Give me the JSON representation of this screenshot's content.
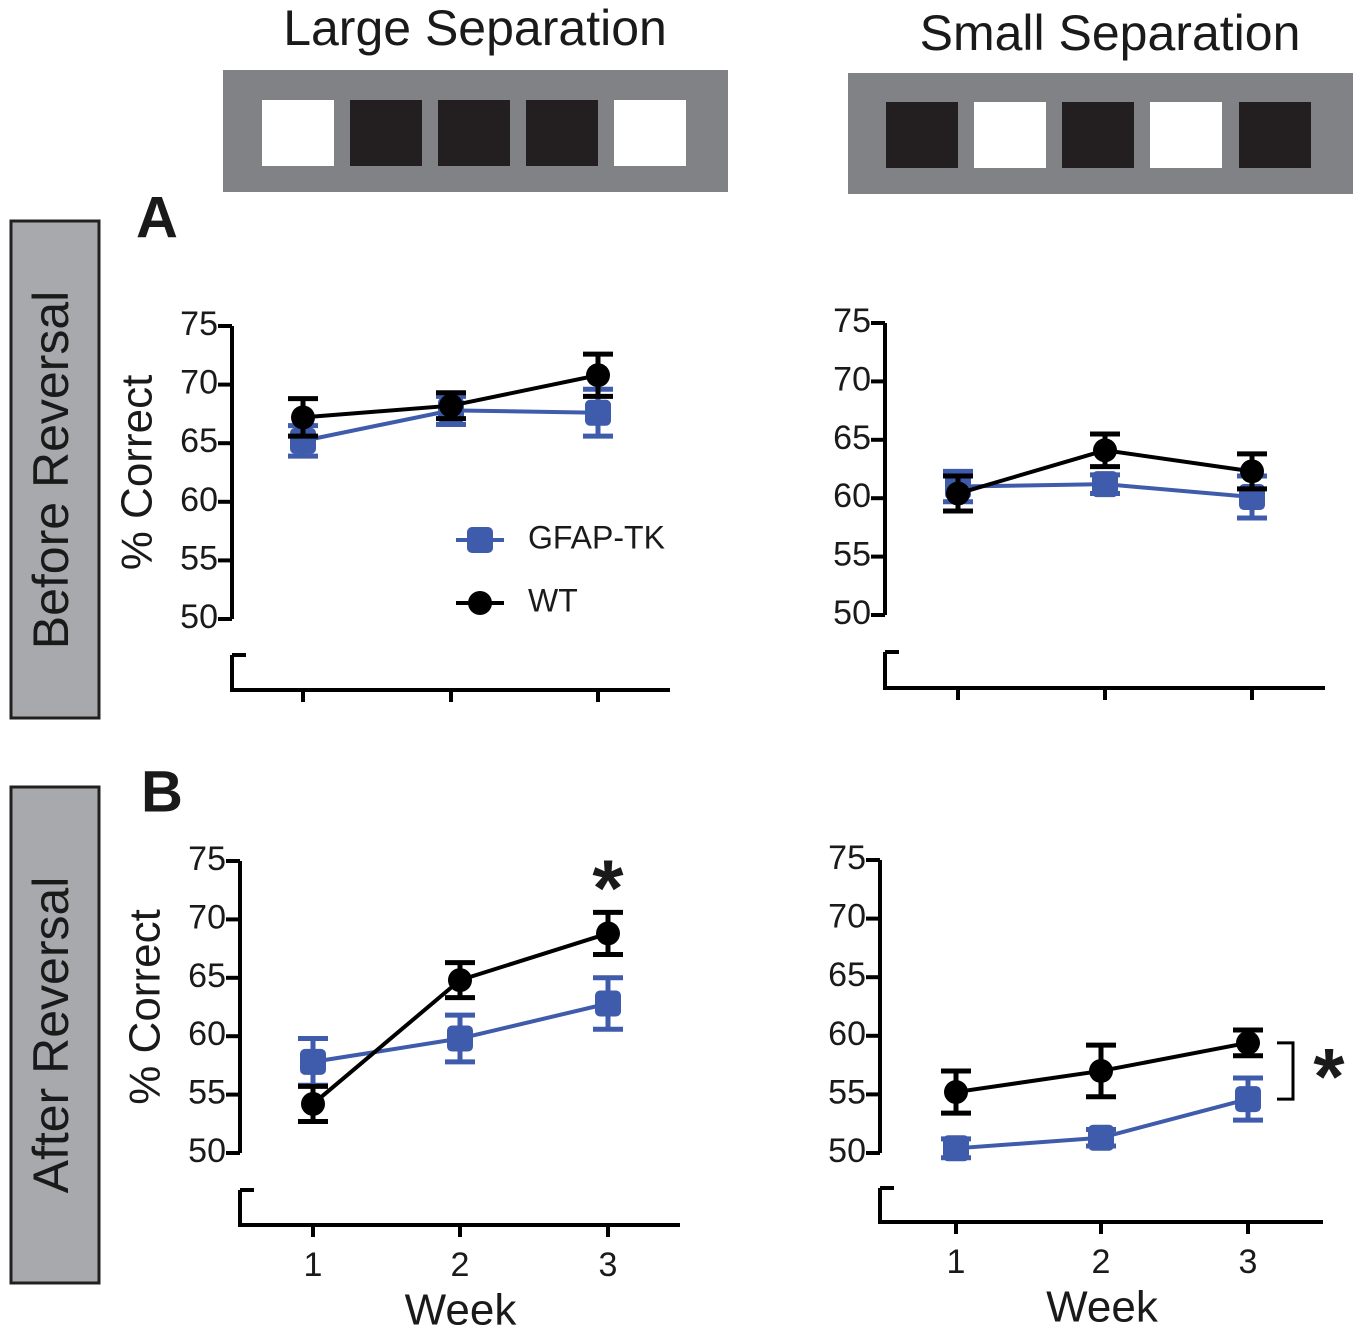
{
  "header": {
    "left": "Large Separation",
    "right": "Small Separation"
  },
  "rows": {
    "top": "Before Reversal",
    "bottom": "After Reversal"
  },
  "panels": {
    "top": "A",
    "bottom": "B"
  },
  "chart_data": [
    {
      "type": "line",
      "ylabel": "% Correct",
      "categories": [
        null,
        null,
        null
      ],
      "ylim": [
        50,
        75
      ],
      "yticks": [
        50,
        55,
        60,
        65,
        70,
        75
      ],
      "legend": "center",
      "series": [
        {
          "name": "GFAP-TK",
          "color": "#3f5bab",
          "marker": "square",
          "values": [
            65.2,
            67.8,
            67.6
          ],
          "errors": [
            1.3,
            1.2,
            2.0
          ]
        },
        {
          "name": "WT",
          "color": "#000000",
          "marker": "circle",
          "values": [
            67.2,
            68.2,
            70.8
          ],
          "errors": [
            1.6,
            1.1,
            1.8
          ]
        }
      ]
    },
    {
      "type": "line",
      "categories": [
        null,
        null,
        null
      ],
      "ylim": [
        50,
        75
      ],
      "yticks": [
        50,
        55,
        60,
        65,
        70,
        75
      ],
      "series": [
        {
          "color": "#3f5bab",
          "marker": "square",
          "values": [
            61.0,
            61.2,
            60.1
          ],
          "errors": [
            1.3,
            0.8,
            1.8
          ]
        },
        {
          "color": "#000000",
          "marker": "circle",
          "values": [
            60.4,
            64.1,
            62.3
          ],
          "errors": [
            1.5,
            1.4,
            1.5
          ]
        }
      ]
    },
    {
      "type": "line",
      "ylabel": "% Correct",
      "xlabel": "Week",
      "categories": [
        "1",
        "2",
        "3"
      ],
      "ylim": [
        50,
        75
      ],
      "yticks": [
        50,
        55,
        60,
        65,
        70,
        75
      ],
      "annotation": "*",
      "series": [
        {
          "color": "#3f5bab",
          "marker": "square",
          "values": [
            57.8,
            59.8,
            62.8
          ],
          "errors": [
            2.0,
            2.0,
            2.2
          ]
        },
        {
          "color": "#000000",
          "marker": "circle",
          "values": [
            54.2,
            64.8,
            68.8
          ],
          "errors": [
            1.5,
            1.5,
            1.8
          ]
        }
      ]
    },
    {
      "type": "line",
      "xlabel": "Week",
      "categories": [
        "1",
        "2",
        "3"
      ],
      "ylim": [
        50,
        75
      ],
      "yticks": [
        50,
        55,
        60,
        65,
        70,
        75
      ],
      "annotation": "*",
      "series": [
        {
          "color": "#3f5bab",
          "marker": "square",
          "values": [
            50.4,
            51.3,
            54.6
          ],
          "errors": [
            0.8,
            0.7,
            1.8
          ]
        },
        {
          "color": "#000000",
          "marker": "circle",
          "values": [
            55.2,
            57.0,
            59.4
          ],
          "errors": [
            1.8,
            2.2,
            1.1
          ]
        }
      ]
    }
  ]
}
